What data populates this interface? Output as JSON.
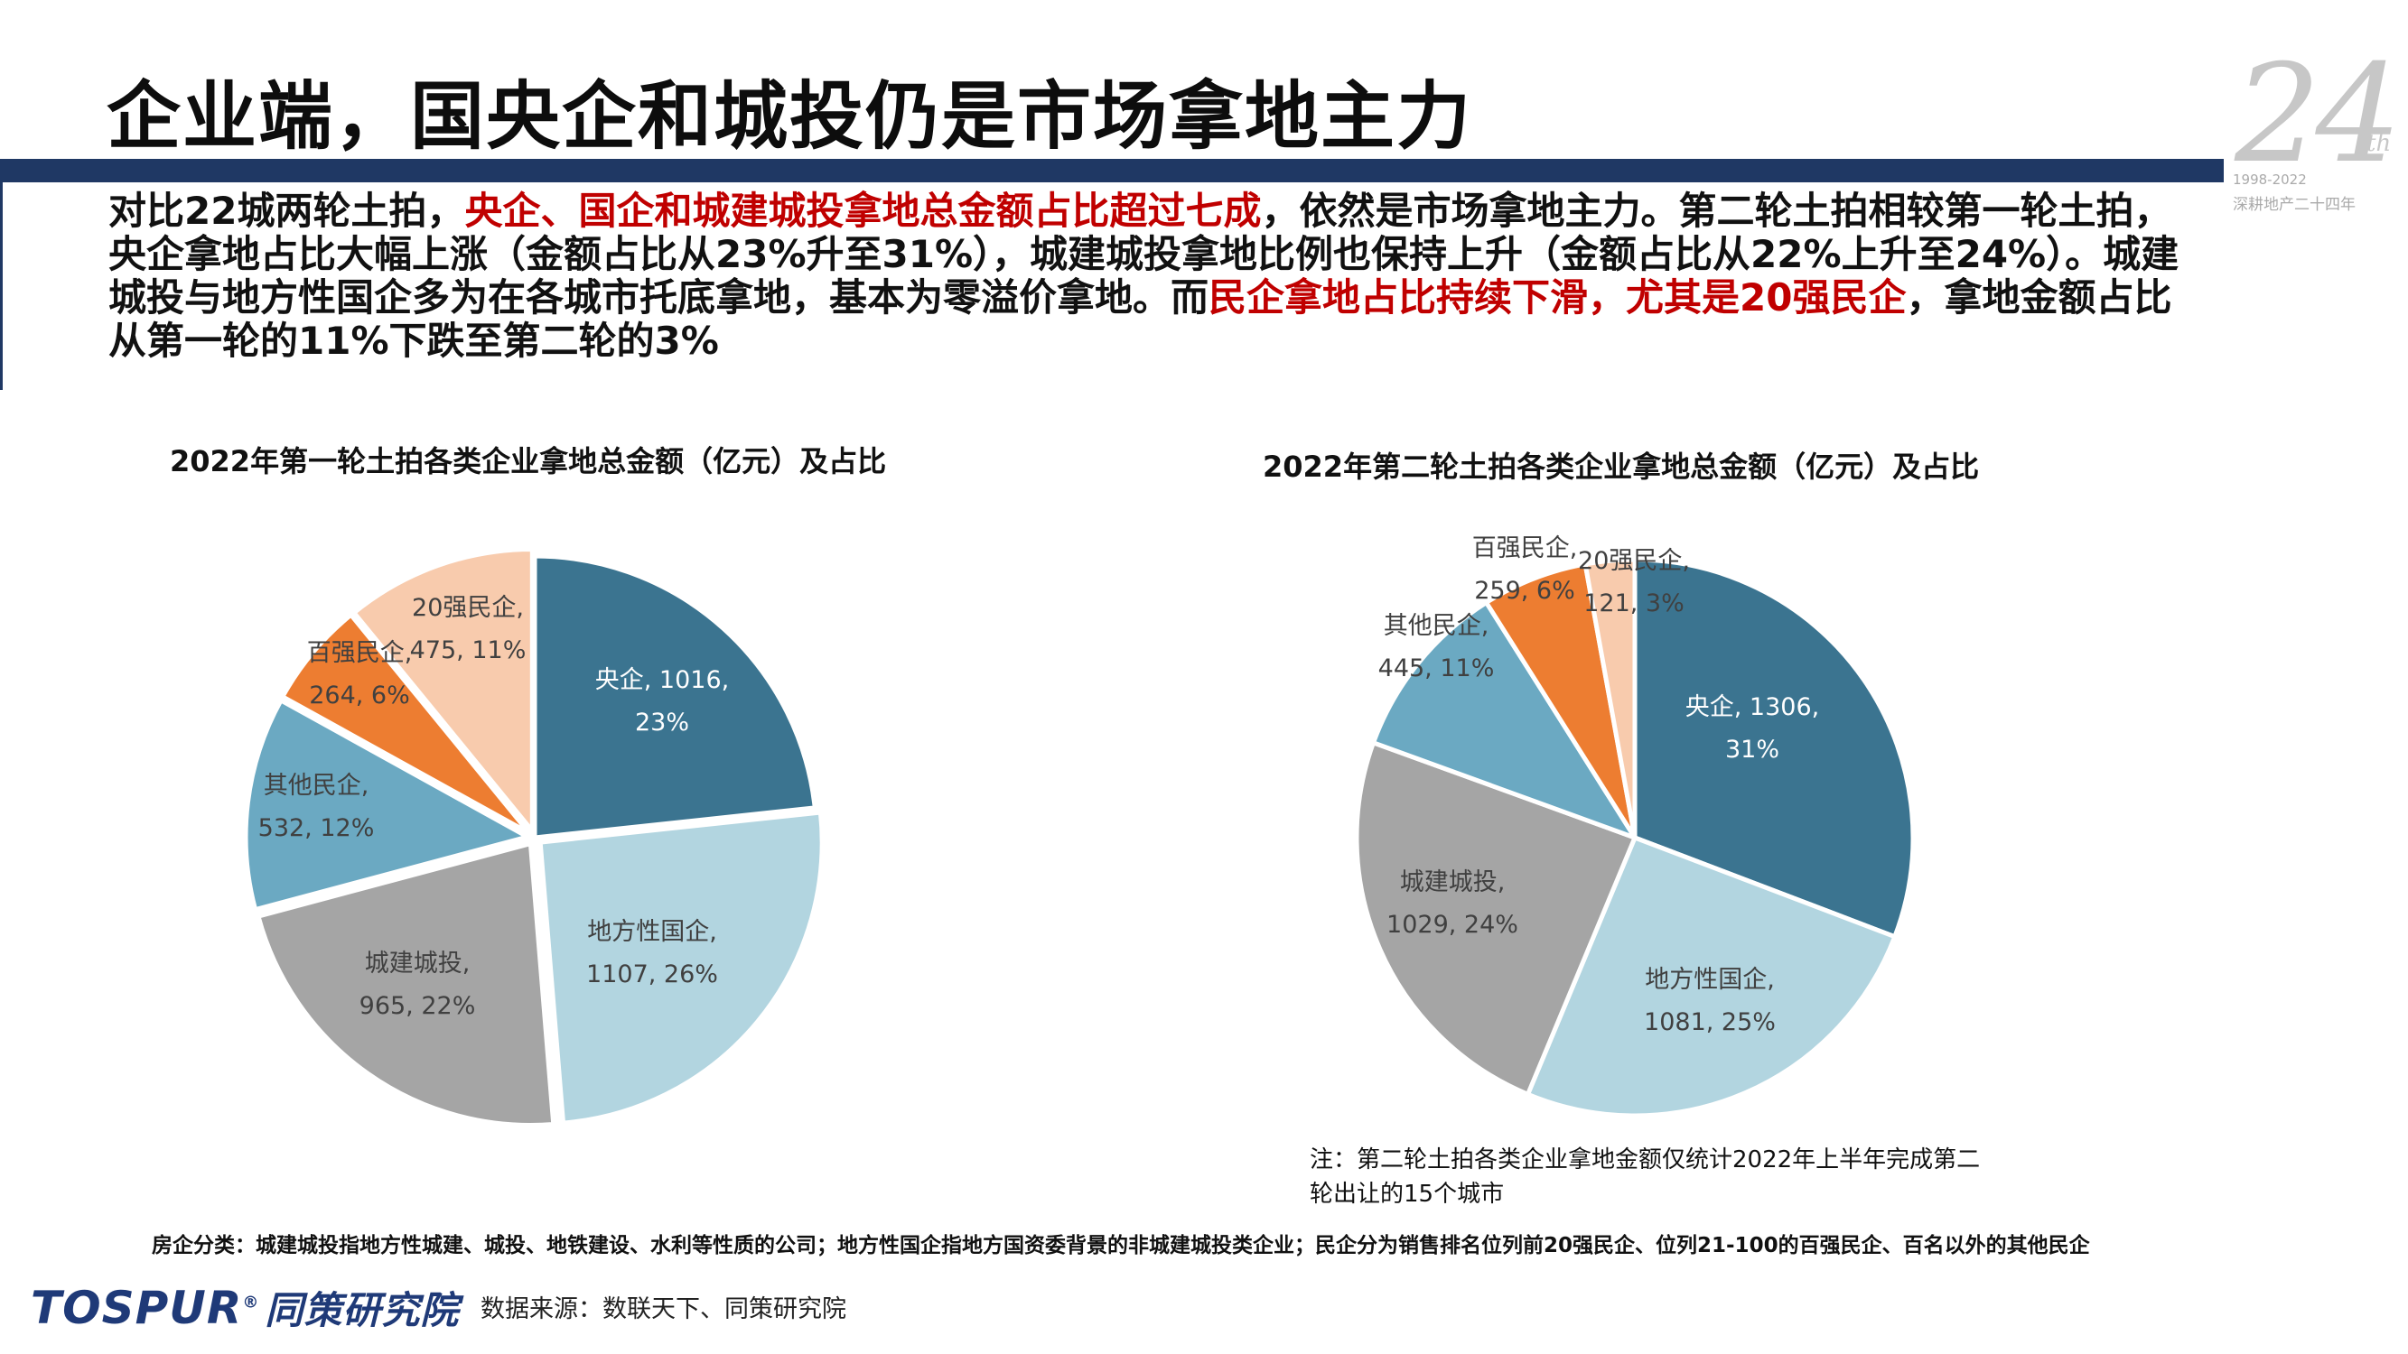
{
  "header": {
    "title": "企业端，国央企和城投仍是市场拿地主力",
    "logo_number": "24",
    "logo_suffix": "th",
    "logo_years": "1998-2022",
    "logo_caption": "深耕地产二十四年"
  },
  "summary": {
    "s1": "对比22城两轮土拍，",
    "s2": "央企、国企和城建城投拿地总金额占比超过七成",
    "s3": "，依然是市场拿地主力。第二轮土拍相较第一轮土拍，央企拿地占比大幅上涨（金额占比从23%升至31%），城建城投拿地比例也保持上升（金额占比从22%上升至24%）。城建城投与地方性国企多为在各城市托底拿地，基本为零溢价拿地。而",
    "s4": "民企拿地占比持续下滑，尤其是20强民企",
    "s5": "，拿地金额占比从第一轮的11%下跌至第二轮的3%"
  },
  "chart_data": [
    {
      "type": "pie",
      "title": "2022年第一轮土拍各类企业拿地总金额（亿元）及占比",
      "slices": [
        {
          "name": "央企",
          "value": 1016,
          "pct": "23%",
          "color": "#3b7490",
          "label": [
            "央企, 1016,",
            "23%"
          ],
          "text_color": "#ffffff"
        },
        {
          "name": "地方性国企",
          "value": 1107,
          "pct": "26%",
          "color": "#b2d5e0",
          "label": [
            "地方性国企,",
            "1107, 26%"
          ],
          "text_color": "#404040"
        },
        {
          "name": "城建城投",
          "value": 965,
          "pct": "22%",
          "color": "#a5a5a5",
          "label": [
            "城建城投,",
            "965, 22%"
          ],
          "text_color": "#404040"
        },
        {
          "name": "其他民企",
          "value": 532,
          "pct": "12%",
          "color": "#6ba9c2",
          "label": [
            "其他民企,",
            "532, 12%"
          ],
          "text_color": "#404040"
        },
        {
          "name": "百强民企",
          "value": 264,
          "pct": "6%",
          "color": "#ed7d31",
          "label": [
            "百强民企,",
            "264, 6%"
          ],
          "text_color": "#404040"
        },
        {
          "name": "20强民企",
          "value": 475,
          "pct": "11%",
          "color": "#f8cbad",
          "label": [
            "20强民企,",
            "475, 11%"
          ],
          "text_color": "#404040"
        }
      ]
    },
    {
      "type": "pie",
      "title": "2022年第二轮土拍各类企业拿地总金额（亿元）及占比",
      "slices": [
        {
          "name": "央企",
          "value": 1306,
          "pct": "31%",
          "color": "#3b7490",
          "label": [
            "央企, 1306,",
            "31%"
          ],
          "text_color": "#ffffff"
        },
        {
          "name": "地方性国企",
          "value": 1081,
          "pct": "25%",
          "color": "#b2d5e0",
          "label": [
            "地方性国企,",
            "1081, 25%"
          ],
          "text_color": "#404040"
        },
        {
          "name": "城建城投",
          "value": 1029,
          "pct": "24%",
          "color": "#a5a5a5",
          "label": [
            "城建城投,",
            "1029, 24%"
          ],
          "text_color": "#404040"
        },
        {
          "name": "其他民企",
          "value": 445,
          "pct": "11%",
          "color": "#6ba9c2",
          "label": [
            "其他民企,",
            "445, 11%"
          ],
          "text_color": "#404040"
        },
        {
          "name": "百强民企",
          "value": 259,
          "pct": "6%",
          "color": "#ed7d31",
          "label": [
            "百强民企,",
            "259, 6%"
          ],
          "text_color": "#404040"
        },
        {
          "name": "20强民企",
          "value": 121,
          "pct": "3%",
          "color": "#f8cbad",
          "label": [
            "20强民企,",
            "121, 3%"
          ],
          "text_color": "#404040"
        }
      ]
    }
  ],
  "note": "注：第二轮土拍各类企业拿地金额仅统计2022年上半年完成第二轮出让的15个城市",
  "footer": {
    "definition": "房企分类：城建城投指地方性城建、城投、地铁建设、水利等性质的公司；地方性国企指地方国资委背景的非城建城投类企业；民企分为销售排名位列前20强民企、位列21-100的百强民企、百名以外的其他民企",
    "brand": "TOSPUR",
    "brand_reg": "®",
    "brand_cn": "同策研究院",
    "source": "数据来源：数联天下、同策研究院"
  }
}
